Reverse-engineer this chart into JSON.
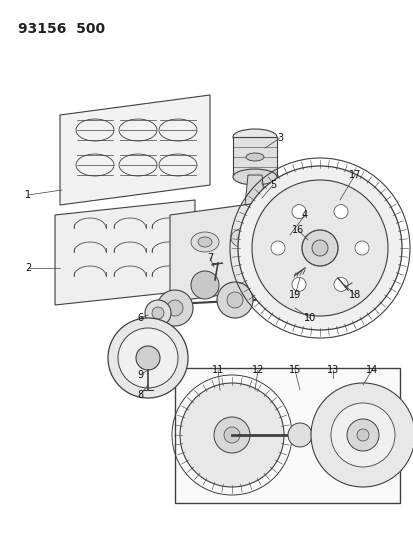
{
  "title": "93156  500",
  "bg_color": "#ffffff",
  "line_color": "#404040",
  "fig_w": 4.14,
  "fig_h": 5.33,
  "dpi": 100
}
